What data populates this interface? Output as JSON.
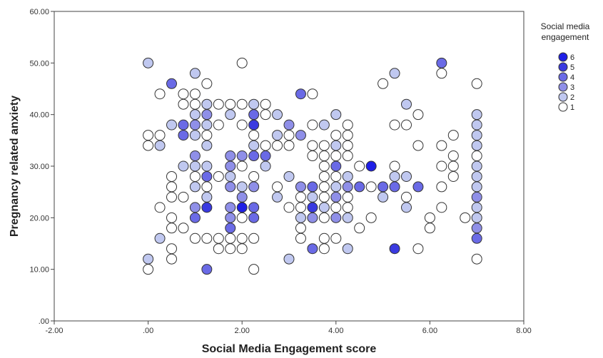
{
  "chart_data": {
    "type": "scatter",
    "xlabel": "Social Media Engagement score",
    "ylabel": "Pregnancy related anxiety",
    "xlim": [
      -2,
      8
    ],
    "ylim": [
      0,
      60
    ],
    "x_ticks": [
      -2,
      0,
      2,
      4,
      6,
      8
    ],
    "y_ticks": [
      0,
      10,
      20,
      30,
      40,
      50,
      60
    ],
    "x_tick_labels": [
      "-2.00",
      ".00",
      "2.00",
      "4.00",
      "6.00",
      "8.00"
    ],
    "y_tick_labels": [
      ".00",
      "10.00",
      "20.00",
      "30.00",
      "40.00",
      "50.00",
      "60.00"
    ],
    "grid": false,
    "legend": {
      "title_lines": [
        "Social media",
        "engagement"
      ],
      "position": "right",
      "entries": [
        {
          "label": "6",
          "color": "#1f1fe6"
        },
        {
          "label": "5",
          "color": "#3a3ae0"
        },
        {
          "label": "4",
          "color": "#6a6ae6"
        },
        {
          "label": "3",
          "color": "#8f8fe8"
        },
        {
          "label": "2",
          "color": "#c0c8f0"
        },
        {
          "label": "1",
          "color": "#ffffff"
        }
      ]
    },
    "colors": {
      "1": "#ffffff",
      "2": "#c0c8f0",
      "3": "#8f8fe8",
      "4": "#6a6ae6",
      "5": "#3a3ae0",
      "6": "#1f1fe6"
    },
    "points": [
      [
        0,
        50,
        2
      ],
      [
        0,
        12,
        2
      ],
      [
        0,
        10,
        1
      ],
      [
        0,
        36,
        1
      ],
      [
        0,
        34,
        1
      ],
      [
        0.25,
        44,
        1
      ],
      [
        0.25,
        36,
        1
      ],
      [
        0.25,
        34,
        2
      ],
      [
        0.25,
        22,
        1
      ],
      [
        0.25,
        16,
        2
      ],
      [
        0.5,
        46,
        4
      ],
      [
        0.5,
        38,
        2
      ],
      [
        0.5,
        28,
        1
      ],
      [
        0.5,
        26,
        1
      ],
      [
        0.5,
        24,
        1
      ],
      [
        0.5,
        20,
        1
      ],
      [
        0.5,
        18,
        1
      ],
      [
        0.5,
        14,
        1
      ],
      [
        0.5,
        12,
        1
      ],
      [
        0.75,
        44,
        1
      ],
      [
        0.75,
        42,
        1
      ],
      [
        0.75,
        38,
        4
      ],
      [
        0.75,
        36,
        4
      ],
      [
        0.75,
        30,
        2
      ],
      [
        0.75,
        24,
        1
      ],
      [
        0.75,
        18,
        1
      ],
      [
        1,
        48,
        2
      ],
      [
        1,
        44,
        1
      ],
      [
        1,
        42,
        1
      ],
      [
        1,
        40,
        2
      ],
      [
        1,
        38,
        3
      ],
      [
        1,
        36,
        2
      ],
      [
        1,
        32,
        3
      ],
      [
        1,
        30,
        2
      ],
      [
        1,
        28,
        1
      ],
      [
        1,
        26,
        2
      ],
      [
        1,
        22,
        3
      ],
      [
        1,
        20,
        4
      ],
      [
        1,
        16,
        1
      ],
      [
        1.25,
        46,
        1
      ],
      [
        1.25,
        42,
        2
      ],
      [
        1.25,
        40,
        3
      ],
      [
        1.25,
        38,
        2
      ],
      [
        1.25,
        36,
        1
      ],
      [
        1.25,
        34,
        2
      ],
      [
        1.25,
        30,
        2
      ],
      [
        1.25,
        28,
        4
      ],
      [
        1.25,
        26,
        1
      ],
      [
        1.25,
        24,
        2
      ],
      [
        1.25,
        22,
        5
      ],
      [
        1.25,
        16,
        1
      ],
      [
        1.25,
        10,
        4
      ],
      [
        1.5,
        42,
        1
      ],
      [
        1.5,
        38,
        1
      ],
      [
        1.5,
        28,
        1
      ],
      [
        1.5,
        16,
        1
      ],
      [
        1.5,
        14,
        1
      ],
      [
        1.75,
        42,
        1
      ],
      [
        1.75,
        40,
        2
      ],
      [
        1.75,
        32,
        3
      ],
      [
        1.75,
        30,
        3
      ],
      [
        1.75,
        28,
        2
      ],
      [
        1.75,
        26,
        3
      ],
      [
        1.75,
        22,
        3
      ],
      [
        1.75,
        20,
        3
      ],
      [
        1.75,
        18,
        4
      ],
      [
        1.75,
        16,
        1
      ],
      [
        1.75,
        14,
        1
      ],
      [
        2,
        50,
        1
      ],
      [
        2,
        42,
        1
      ],
      [
        2,
        38,
        1
      ],
      [
        2,
        32,
        3
      ],
      [
        2,
        30,
        1
      ],
      [
        2,
        26,
        2
      ],
      [
        2,
        24,
        3
      ],
      [
        2,
        22,
        6
      ],
      [
        2,
        20,
        1
      ],
      [
        2,
        16,
        1
      ],
      [
        2,
        14,
        1
      ],
      [
        2.25,
        42,
        2
      ],
      [
        2.25,
        40,
        4
      ],
      [
        2.25,
        38,
        5
      ],
      [
        2.25,
        36,
        1
      ],
      [
        2.25,
        34,
        2
      ],
      [
        2.25,
        32,
        4
      ],
      [
        2.25,
        28,
        1
      ],
      [
        2.25,
        26,
        3
      ],
      [
        2.25,
        22,
        4
      ],
      [
        2.25,
        20,
        4
      ],
      [
        2.25,
        16,
        1
      ],
      [
        2.25,
        10,
        1
      ],
      [
        2.5,
        42,
        1
      ],
      [
        2.5,
        40,
        1
      ],
      [
        2.5,
        34,
        1
      ],
      [
        2.5,
        32,
        4
      ],
      [
        2.5,
        30,
        2
      ],
      [
        2.75,
        40,
        2
      ],
      [
        2.75,
        36,
        2
      ],
      [
        2.75,
        34,
        1
      ],
      [
        2.75,
        26,
        1
      ],
      [
        2.75,
        24,
        2
      ],
      [
        3,
        38,
        3
      ],
      [
        3,
        36,
        1
      ],
      [
        3,
        34,
        1
      ],
      [
        3,
        28,
        2
      ],
      [
        3,
        22,
        1
      ],
      [
        3,
        12,
        2
      ],
      [
        3.25,
        44,
        4
      ],
      [
        3.25,
        36,
        3
      ],
      [
        3.25,
        26,
        3
      ],
      [
        3.25,
        24,
        1
      ],
      [
        3.25,
        22,
        1
      ],
      [
        3.25,
        20,
        2
      ],
      [
        3.25,
        18,
        1
      ],
      [
        3.25,
        16,
        1
      ],
      [
        3.5,
        44,
        1
      ],
      [
        3.5,
        38,
        1
      ],
      [
        3.5,
        34,
        1
      ],
      [
        3.5,
        32,
        1
      ],
      [
        3.5,
        26,
        4
      ],
      [
        3.5,
        24,
        2
      ],
      [
        3.5,
        22,
        5
      ],
      [
        3.5,
        20,
        3
      ],
      [
        3.5,
        14,
        4
      ],
      [
        3.75,
        38,
        2
      ],
      [
        3.75,
        34,
        1
      ],
      [
        3.75,
        32,
        1
      ],
      [
        3.75,
        30,
        1
      ],
      [
        3.75,
        28,
        1
      ],
      [
        3.75,
        26,
        1
      ],
      [
        3.75,
        24,
        1
      ],
      [
        3.75,
        22,
        2
      ],
      [
        3.75,
        20,
        1
      ],
      [
        3.75,
        16,
        1
      ],
      [
        3.75,
        14,
        1
      ],
      [
        4,
        40,
        2
      ],
      [
        4,
        36,
        1
      ],
      [
        4,
        34,
        2
      ],
      [
        4,
        32,
        1
      ],
      [
        4,
        30,
        4
      ],
      [
        4,
        28,
        1
      ],
      [
        4,
        26,
        2
      ],
      [
        4,
        24,
        3
      ],
      [
        4,
        22,
        1
      ],
      [
        4,
        20,
        3
      ],
      [
        4,
        16,
        1
      ],
      [
        4.25,
        38,
        1
      ],
      [
        4.25,
        36,
        1
      ],
      [
        4.25,
        34,
        1
      ],
      [
        4.25,
        32,
        1
      ],
      [
        4.25,
        28,
        2
      ],
      [
        4.25,
        26,
        3
      ],
      [
        4.25,
        24,
        1
      ],
      [
        4.25,
        22,
        1
      ],
      [
        4.25,
        20,
        2
      ],
      [
        4.25,
        14,
        2
      ],
      [
        4.5,
        30,
        1
      ],
      [
        4.5,
        26,
        4
      ],
      [
        4.5,
        18,
        1
      ],
      [
        4.75,
        30,
        6
      ],
      [
        4.75,
        26,
        1
      ],
      [
        4.75,
        20,
        1
      ],
      [
        5,
        46,
        1
      ],
      [
        5,
        26,
        4
      ],
      [
        5,
        24,
        2
      ],
      [
        5.25,
        48,
        2
      ],
      [
        5.25,
        38,
        1
      ],
      [
        5.25,
        30,
        1
      ],
      [
        5.25,
        28,
        2
      ],
      [
        5.25,
        26,
        4
      ],
      [
        5.25,
        14,
        5
      ],
      [
        5.5,
        42,
        2
      ],
      [
        5.5,
        38,
        1
      ],
      [
        5.5,
        28,
        2
      ],
      [
        5.5,
        24,
        1
      ],
      [
        5.5,
        22,
        2
      ],
      [
        5.75,
        40,
        1
      ],
      [
        5.75,
        34,
        1
      ],
      [
        5.75,
        26,
        4
      ],
      [
        5.75,
        14,
        1
      ],
      [
        6,
        20,
        1
      ],
      [
        6,
        18,
        1
      ],
      [
        6.25,
        50,
        4
      ],
      [
        6.25,
        48,
        1
      ],
      [
        6.25,
        34,
        1
      ],
      [
        6.25,
        30,
        1
      ],
      [
        6.25,
        26,
        1
      ],
      [
        6.25,
        22,
        1
      ],
      [
        6.5,
        36,
        1
      ],
      [
        6.5,
        32,
        1
      ],
      [
        6.5,
        30,
        1
      ],
      [
        6.5,
        28,
        1
      ],
      [
        6.75,
        20,
        1
      ],
      [
        7,
        46,
        1
      ],
      [
        7,
        40,
        2
      ],
      [
        7,
        38,
        2
      ],
      [
        7,
        36,
        2
      ],
      [
        7,
        34,
        2
      ],
      [
        7,
        32,
        1
      ],
      [
        7,
        30,
        2
      ],
      [
        7,
        28,
        2
      ],
      [
        7,
        26,
        2
      ],
      [
        7,
        24,
        3
      ],
      [
        7,
        22,
        2
      ],
      [
        7,
        20,
        2
      ],
      [
        7,
        18,
        3
      ],
      [
        7,
        16,
        4
      ],
      [
        7,
        12,
        1
      ]
    ]
  }
}
